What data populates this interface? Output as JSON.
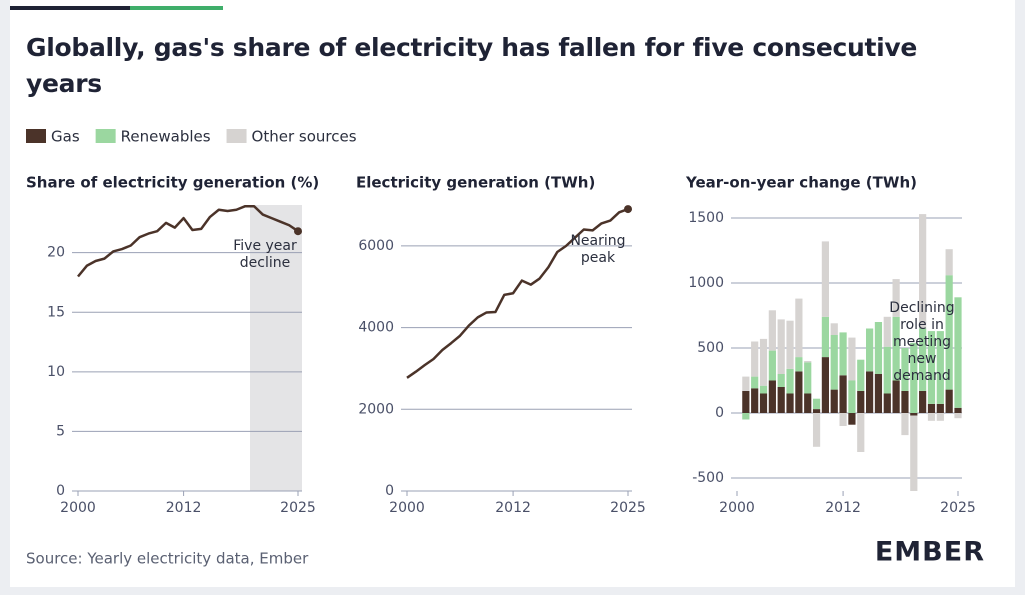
{
  "title": "Globally, gas's share of electricity has fallen for five consecutive years",
  "source": "Source: Yearly electricity data, Ember",
  "logo": "EMBER",
  "chart_data": [
    {
      "type": "line",
      "title": "Share of electricity generation (%)",
      "x": [
        2000,
        2001,
        2002,
        2003,
        2004,
        2005,
        2006,
        2007,
        2008,
        2009,
        2010,
        2011,
        2012,
        2013,
        2014,
        2015,
        2016,
        2017,
        2018,
        2019,
        2020,
        2021,
        2022,
        2023,
        2024,
        2025
      ],
      "values": [
        18.0,
        18.9,
        19.3,
        19.5,
        20.1,
        20.3,
        20.6,
        21.3,
        21.6,
        21.8,
        22.5,
        22.1,
        22.9,
        21.9,
        22.0,
        23.0,
        23.6,
        23.5,
        23.6,
        23.9,
        23.9,
        23.2,
        22.9,
        22.6,
        22.3,
        21.8
      ],
      "color": "#4b3329",
      "xlim": [
        2000,
        2025
      ],
      "xticks": [
        2000,
        2012,
        2025
      ],
      "ylim": [
        0,
        24
      ],
      "yticks": [
        0,
        5,
        10,
        15,
        20
      ],
      "grid": true,
      "shade": [
        2020,
        2025
      ],
      "annotation": [
        "Five year",
        "decline"
      ]
    },
    {
      "type": "line",
      "title": "Electricity generation (TWh)",
      "x": [
        2000,
        2001,
        2002,
        2003,
        2004,
        2005,
        2006,
        2007,
        2008,
        2009,
        2010,
        2011,
        2012,
        2013,
        2014,
        2015,
        2016,
        2017,
        2018,
        2019,
        2020,
        2021,
        2022,
        2023,
        2024,
        2025
      ],
      "values": [
        2770,
        2920,
        3080,
        3230,
        3450,
        3620,
        3800,
        4050,
        4250,
        4370,
        4380,
        4800,
        4840,
        5150,
        5050,
        5200,
        5480,
        5850,
        6000,
        6200,
        6400,
        6380,
        6550,
        6620,
        6820,
        6900
      ],
      "color": "#4b3329",
      "xlim": [
        2000,
        2025
      ],
      "xticks": [
        2000,
        2012,
        2025
      ],
      "ylim": [
        0,
        7000
      ],
      "yticks": [
        0,
        2000,
        4000,
        6000
      ],
      "grid": true,
      "annotation": [
        "Nearing",
        "peak"
      ]
    },
    {
      "type": "bar",
      "title": "Year-on-year change (TWh)",
      "x": [
        2001,
        2002,
        2003,
        2004,
        2005,
        2006,
        2007,
        2008,
        2009,
        2010,
        2011,
        2012,
        2013,
        2014,
        2015,
        2016,
        2017,
        2018,
        2019,
        2020,
        2021,
        2022,
        2023,
        2024,
        2025
      ],
      "series": [
        {
          "name": "Gas",
          "color": "#4b3329",
          "values": [
            170,
            190,
            150,
            250,
            200,
            150,
            320,
            150,
            30,
            430,
            180,
            290,
            -90,
            170,
            320,
            300,
            150,
            250,
            170,
            -20,
            170,
            70,
            70,
            180,
            40
          ]
        },
        {
          "name": "Renewables",
          "color": "#9bd7a0",
          "values": [
            -50,
            90,
            60,
            230,
            100,
            190,
            110,
            240,
            80,
            310,
            420,
            330,
            250,
            240,
            330,
            400,
            360,
            490,
            330,
            540,
            480,
            560,
            560,
            880,
            850
          ]
        },
        {
          "name": "Other sources",
          "color": "#d6d3d1",
          "values": [
            110,
            270,
            360,
            310,
            420,
            370,
            450,
            10,
            -260,
            580,
            90,
            -100,
            330,
            -300,
            0,
            0,
            230,
            290,
            -170,
            -580,
            880,
            -60,
            -60,
            200,
            -40
          ]
        }
      ],
      "xlim": [
        2000,
        2025
      ],
      "xticks": [
        2000,
        2012,
        2025
      ],
      "ylim": [
        -600,
        1600
      ],
      "yticks": [
        -500,
        0,
        500,
        1000,
        1500
      ],
      "grid": true,
      "annotation": [
        "Declining",
        "role in",
        "meeting",
        "new",
        "demand"
      ]
    }
  ]
}
